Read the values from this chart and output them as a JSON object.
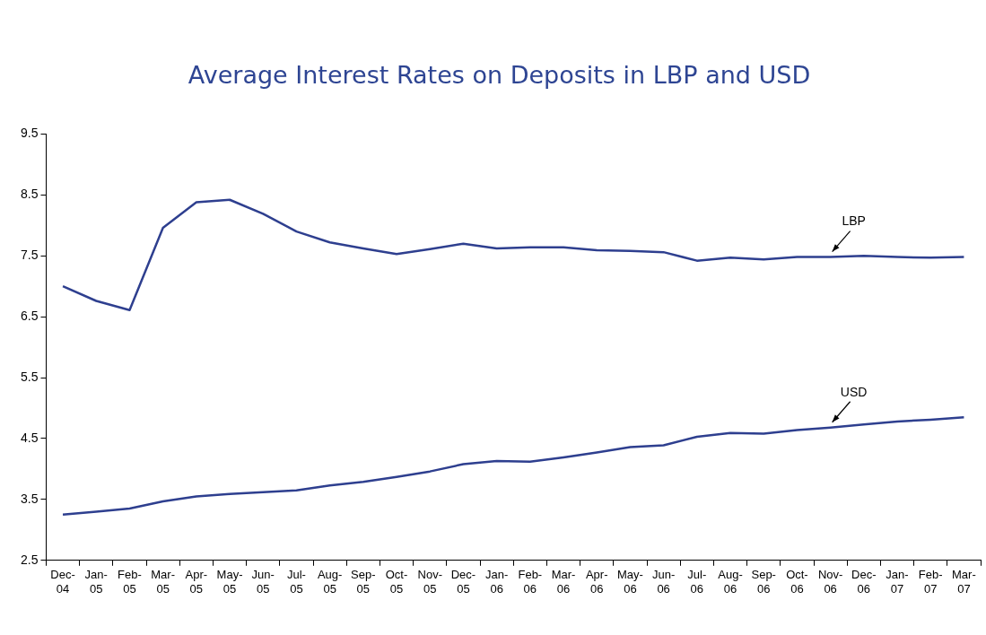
{
  "chart_data": {
    "type": "line",
    "title": "Average Interest Rates on Deposits in LBP and USD",
    "categories": [
      "Dec-04",
      "Jan-05",
      "Feb-05",
      "Mar-05",
      "Apr-05",
      "May-05",
      "Jun-05",
      "Jul-05",
      "Aug-05",
      "Sep-05",
      "Oct-05",
      "Nov-05",
      "Dec-05",
      "Jan-06",
      "Feb-06",
      "Mar-06",
      "Apr-06",
      "May-06",
      "Jun-06",
      "Jul-06",
      "Aug-06",
      "Sep-06",
      "Oct-06",
      "Nov-06",
      "Dec-06",
      "Jan-07",
      "Feb-07",
      "Mar-07"
    ],
    "series": [
      {
        "name": "LBP",
        "color": "#2e3f8f",
        "values": [
          7.0,
          6.76,
          6.61,
          7.96,
          8.38,
          8.42,
          8.19,
          7.9,
          7.72,
          7.62,
          7.53,
          7.61,
          7.7,
          7.62,
          7.64,
          7.64,
          7.59,
          7.58,
          7.56,
          7.42,
          7.47,
          7.44,
          7.48,
          7.48,
          7.5,
          7.48,
          7.47,
          7.48
        ]
      },
      {
        "name": "USD",
        "color": "#2e3f8f",
        "values": [
          3.25,
          3.3,
          3.35,
          3.47,
          3.55,
          3.59,
          3.62,
          3.65,
          3.73,
          3.79,
          3.87,
          3.96,
          4.08,
          4.13,
          4.12,
          4.19,
          4.27,
          4.36,
          4.39,
          4.53,
          4.59,
          4.58,
          4.64,
          4.68,
          4.73,
          4.78,
          4.81,
          4.85
        ]
      }
    ],
    "ylim": [
      2.5,
      9.5
    ],
    "yticks": [
      2.5,
      3.5,
      4.5,
      5.5,
      6.5,
      7.5,
      8.5,
      9.5
    ],
    "grid": false,
    "legend": false,
    "marker": "none",
    "line_style": "solid"
  }
}
